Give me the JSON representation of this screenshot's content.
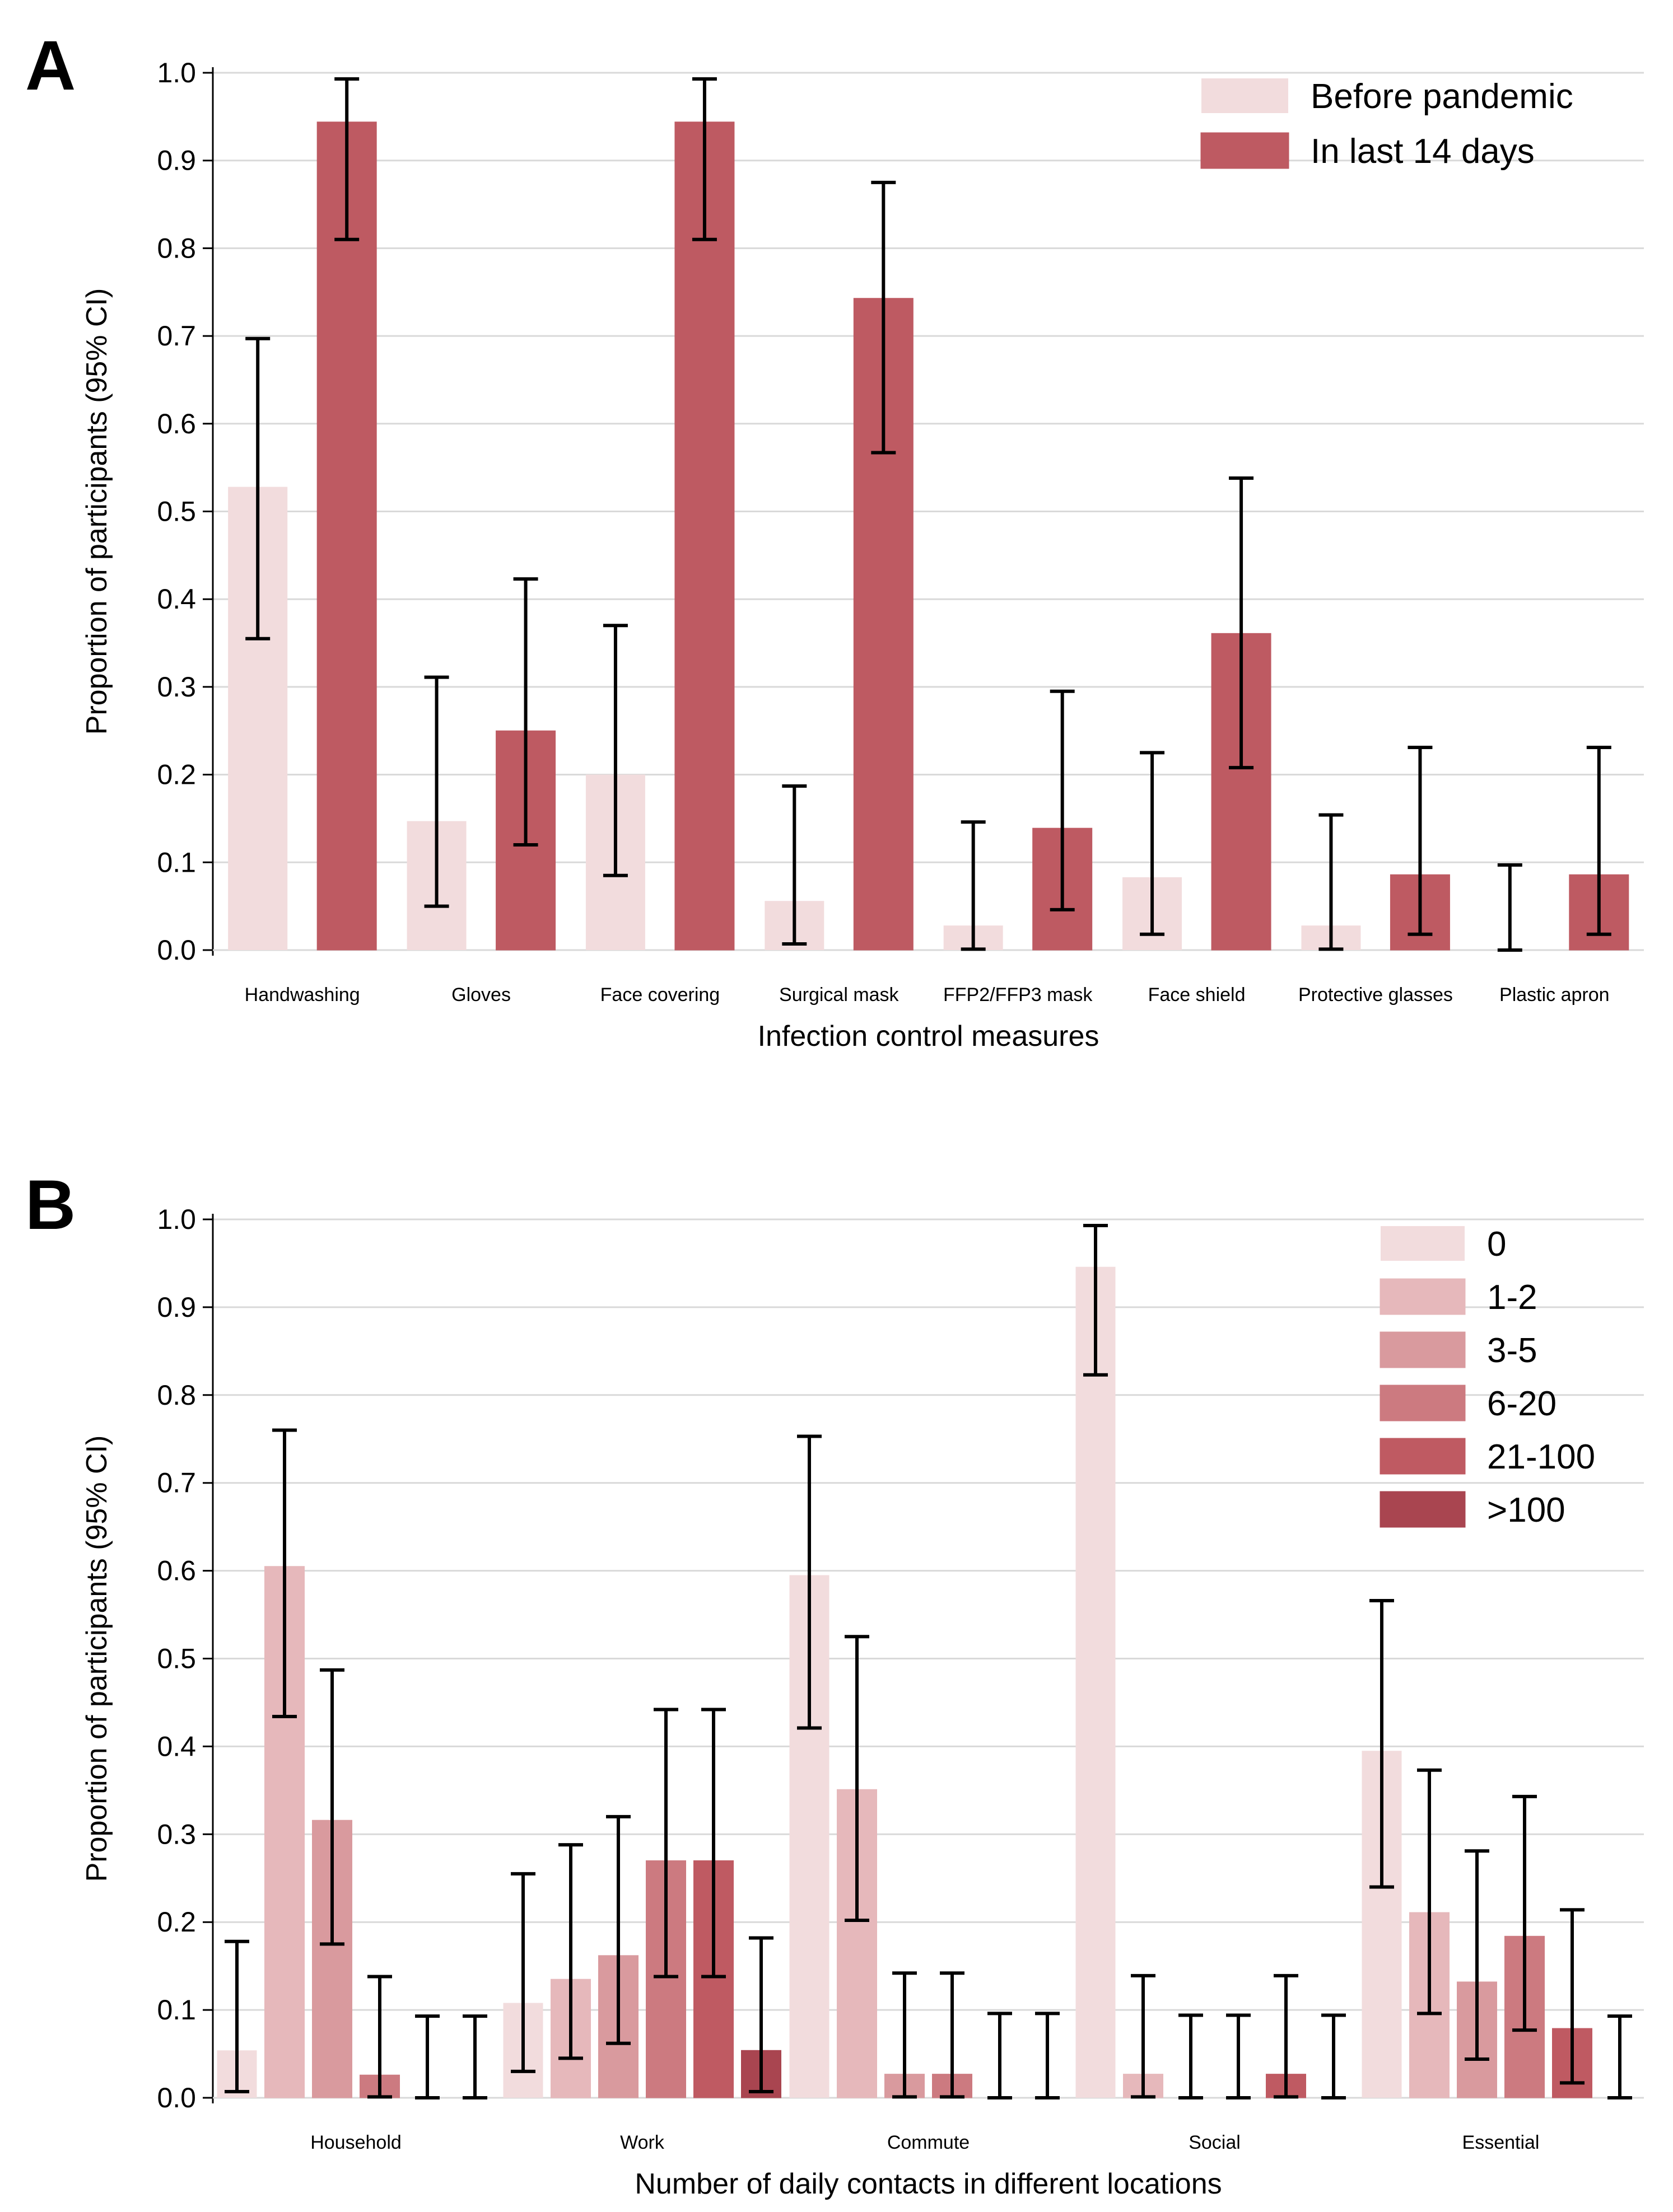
{
  "chart_data": [
    {
      "panel_label": "A",
      "type": "bar",
      "ylabel": "Proportion of participants (95% CI)",
      "xlabel": "Infection control measures",
      "ylim": [
        0,
        1.0
      ],
      "yticks": [
        "0.0",
        "0.1",
        "0.2",
        "0.3",
        "0.4",
        "0.5",
        "0.6",
        "0.7",
        "0.8",
        "0.9",
        "1.0"
      ],
      "grid": true,
      "legend_position": "top-right",
      "categories": [
        "Handwashing",
        "Gloves",
        "Face covering",
        "Surgical mask",
        "FFP2/FFP3 mask",
        "Face shield",
        "Protective glasses",
        "Plastic apron"
      ],
      "series": [
        {
          "name": "Before pandemic",
          "color": "#f2dcdd",
          "values": [
            0.528,
            0.147,
            0.2,
            0.056,
            0.028,
            0.083,
            0.028,
            0.0
          ],
          "ci_low": [
            0.355,
            0.05,
            0.085,
            0.007,
            0.001,
            0.018,
            0.001,
            0.0
          ],
          "ci_high": [
            0.697,
            0.311,
            0.37,
            0.187,
            0.146,
            0.225,
            0.154,
            0.097
          ]
        },
        {
          "name": "In last 14 days",
          "color": "#be5a62",
          "values": [
            0.944,
            0.25,
            0.944,
            0.743,
            0.139,
            0.361,
            0.086,
            0.086
          ],
          "ci_low": [
            0.81,
            0.12,
            0.81,
            0.567,
            0.046,
            0.208,
            0.018,
            0.018
          ],
          "ci_high": [
            0.993,
            0.423,
            0.993,
            0.875,
            0.295,
            0.538,
            0.231,
            0.231
          ]
        }
      ]
    },
    {
      "panel_label": "B",
      "type": "bar",
      "ylabel": "Proportion of participants (95% CI)",
      "xlabel": "Number of daily contacts in different locations",
      "ylim": [
        0,
        1.0
      ],
      "yticks": [
        "0.0",
        "0.1",
        "0.2",
        "0.3",
        "0.4",
        "0.5",
        "0.6",
        "0.7",
        "0.8",
        "0.9",
        "1.0"
      ],
      "grid": true,
      "legend_position": "top-right",
      "categories": [
        "Household",
        "Work",
        "Commute",
        "Social",
        "Essential"
      ],
      "series": [
        {
          "name": "0",
          "color": "#f2dcdd",
          "values": [
            0.054,
            0.108,
            0.595,
            0.946,
            0.395
          ],
          "ci_low": [
            0.007,
            0.03,
            0.421,
            0.823,
            0.24
          ],
          "ci_high": [
            0.178,
            0.255,
            0.753,
            0.993,
            0.566
          ]
        },
        {
          "name": "1-2",
          "color": "#e6b8bb",
          "values": [
            0.605,
            0.135,
            0.351,
            0.027,
            0.211
          ],
          "ci_low": [
            0.434,
            0.045,
            0.202,
            0.001,
            0.096
          ],
          "ci_high": [
            0.76,
            0.288,
            0.525,
            0.139,
            0.373
          ]
        },
        {
          "name": "3-5",
          "color": "#d99a9e",
          "values": [
            0.316,
            0.162,
            0.027,
            0.0,
            0.132
          ],
          "ci_low": [
            0.175,
            0.062,
            0.001,
            0.0,
            0.044
          ],
          "ci_high": [
            0.487,
            0.32,
            0.142,
            0.094,
            0.281
          ]
        },
        {
          "name": "6-20",
          "color": "#cc7a80",
          "values": [
            0.026,
            0.27,
            0.027,
            0.0,
            0.184
          ],
          "ci_low": [
            0.001,
            0.138,
            0.001,
            0.0,
            0.077
          ],
          "ci_high": [
            0.138,
            0.442,
            0.142,
            0.094,
            0.343
          ]
        },
        {
          "name": "21-100",
          "color": "#bf5a62",
          "values": [
            0.0,
            0.27,
            0.0,
            0.027,
            0.079
          ],
          "ci_low": [
            0.0,
            0.138,
            0.0,
            0.001,
            0.017
          ],
          "ci_high": [
            0.093,
            0.442,
            0.096,
            0.139,
            0.214
          ]
        },
        {
          "name": ">100",
          "color": "#a94550",
          "values": [
            0.0,
            0.054,
            0.0,
            0.0,
            0.0
          ],
          "ci_low": [
            0.0,
            0.007,
            0.0,
            0.0,
            0.0
          ],
          "ci_high": [
            0.093,
            0.182,
            0.096,
            0.094,
            0.093
          ]
        }
      ]
    }
  ]
}
